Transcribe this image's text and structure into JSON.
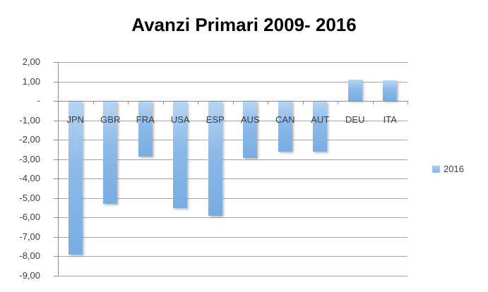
{
  "title": "Avanzi Primari 2009- 2016",
  "legend": {
    "label": "2016"
  },
  "colors": {
    "bar_fill": "#8cb9e8",
    "bar_fill_light": "#b6d5f2",
    "gridline": "#a6a6a6",
    "axis_line": "#8c8c8c",
    "label_text": "#3a3a3a",
    "title_text": "#000000"
  },
  "chart_data": {
    "type": "bar",
    "title": "Avanzi Primari 2009- 2016",
    "categories": [
      "JPN",
      "GBR",
      "FRA",
      "USA",
      "ESP",
      "AUS",
      "CAN",
      "AUT",
      "DEU",
      "ITA"
    ],
    "series": [
      {
        "name": "2016",
        "values": [
          -7.9,
          -5.3,
          -2.85,
          -5.5,
          -5.9,
          -2.95,
          -2.6,
          -2.6,
          1.1,
          1.05
        ]
      }
    ],
    "xlabel": "",
    "ylabel": "",
    "ylim": [
      -9,
      2
    ],
    "grid": true,
    "legend_position": "right",
    "zero_label": "-",
    "y_ticks": [
      {
        "value": 2,
        "label": "2,00"
      },
      {
        "value": 1,
        "label": "1,00"
      },
      {
        "value": 0,
        "label": "-"
      },
      {
        "value": -1,
        "label": "-1,00"
      },
      {
        "value": -2,
        "label": "-2,00"
      },
      {
        "value": -3,
        "label": "-3,00"
      },
      {
        "value": -4,
        "label": "-4,00"
      },
      {
        "value": -5,
        "label": "-5,00"
      },
      {
        "value": -6,
        "label": "-6,00"
      },
      {
        "value": -7,
        "label": "-7,00"
      },
      {
        "value": -8,
        "label": "-8,00"
      },
      {
        "value": -9,
        "label": "-9,00"
      }
    ]
  }
}
